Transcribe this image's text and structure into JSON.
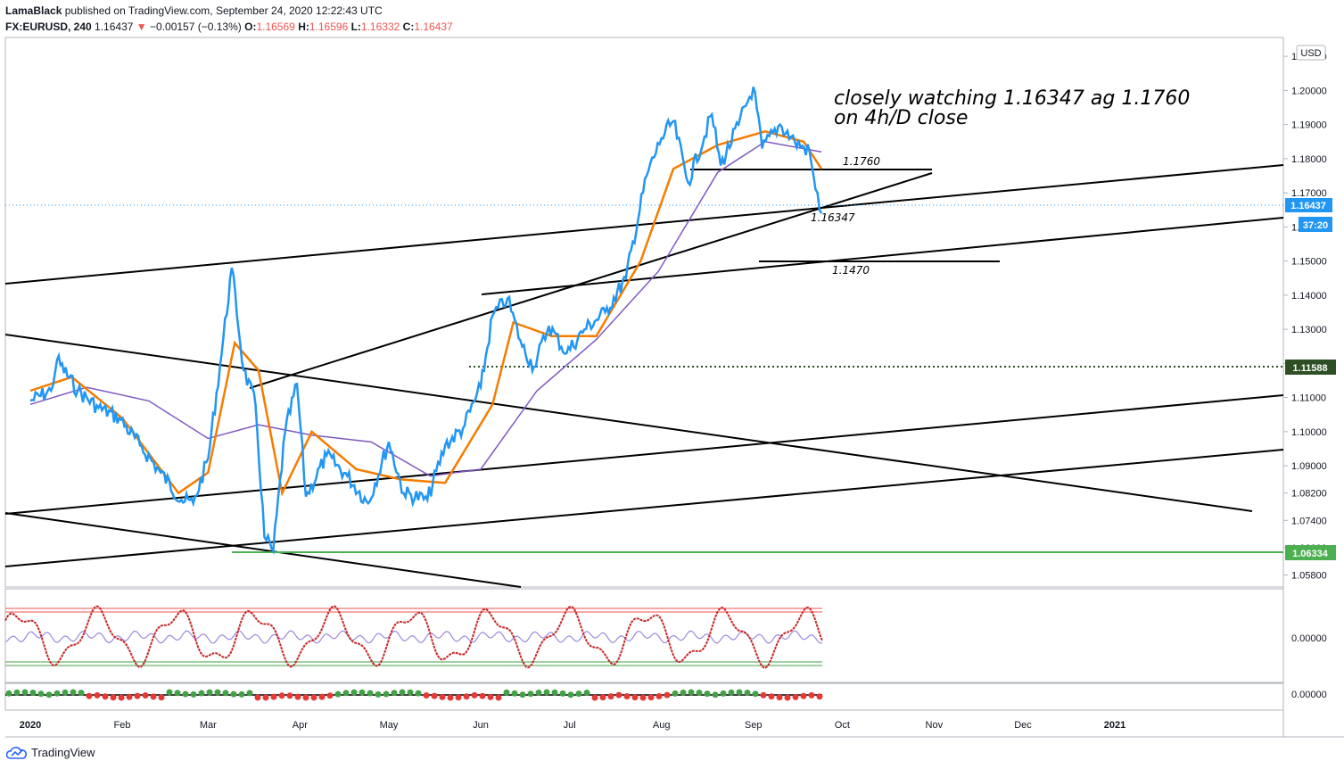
{
  "header": {
    "author": "LamaBlack",
    "published": "published on TradingView.com, September 24, 2020 12:22:43 UTC",
    "symbol": "FX:EURUSD, 240",
    "last": "1.16437",
    "change": "−0.00157 (−0.13%)",
    "o_label": "O:",
    "o_value": "1.16569",
    "h_label": "H:",
    "h_value": "1.16596",
    "l_label": "L:",
    "l_value": "1.16332",
    "c_label": "C:",
    "c_value": "1.16437"
  },
  "footer": {
    "brand": "TradingView"
  },
  "currency_badge": "USD",
  "colors": {
    "price": "#2196f3",
    "ma_fast": "#f57c00",
    "ma_slow": "#7e57c2",
    "support_green": "#4caf50",
    "last_tag": "#2196f3",
    "level_tag_dark": "#2e4f24",
    "osc_red": "#e53935",
    "osc_green": "#43a047"
  },
  "annotations": {
    "note_line1": "closely watching 1.16347 ag 1.1760",
    "note_line2": "on 4h/D close",
    "level_a": "1.1760",
    "level_b": "1.16347",
    "level_c": "1.1470"
  },
  "price_tags": {
    "last": "1.16437",
    "timer": "37:20",
    "dotted_level": "1.11588",
    "green_level": "1.06334"
  },
  "chart_data": [
    {
      "type": "line",
      "title": "",
      "x_ticks": [
        "2020",
        "Feb",
        "Mar",
        "Apr",
        "May",
        "Jun",
        "Jul",
        "Aug",
        "Sep",
        "Oct",
        "Nov",
        "Dec",
        "2021"
      ],
      "y_ticks": [
        "1.05800",
        "1.06600",
        "1.07400",
        "1.08200",
        "1.09000",
        "1.10000",
        "1.11000",
        "1.12000",
        "1.13000",
        "1.14000",
        "1.15000",
        "1.16000",
        "1.17000",
        "1.18000",
        "1.19000",
        "1.20000",
        "1.21000"
      ],
      "ylim": [
        1.055,
        1.215
      ],
      "series": [
        {
          "kind": "price",
          "points": [
            [
              "2020-01-01",
              1.109
            ],
            [
              "2020-01-08",
              1.112
            ],
            [
              "2020-01-10",
              1.121
            ],
            [
              "2020-01-17",
              1.112
            ],
            [
              "2020-01-24",
              1.107
            ],
            [
              "2020-01-31",
              1.104
            ],
            [
              "2020-02-07",
              1.096
            ],
            [
              "2020-02-14",
              1.088
            ],
            [
              "2020-02-21",
              1.08
            ],
            [
              "2020-02-25",
              1.079
            ],
            [
              "2020-03-01",
              1.092
            ],
            [
              "2020-03-05",
              1.119
            ],
            [
              "2020-03-09",
              1.148
            ],
            [
              "2020-03-13",
              1.118
            ],
            [
              "2020-03-17",
              1.108
            ],
            [
              "2020-03-20",
              1.069
            ],
            [
              "2020-03-23",
              1.065
            ],
            [
              "2020-03-27",
              1.1
            ],
            [
              "2020-03-31",
              1.114
            ],
            [
              "2020-04-03",
              1.081
            ],
            [
              "2020-04-10",
              1.093
            ],
            [
              "2020-04-17",
              1.087
            ],
            [
              "2020-04-24",
              1.079
            ],
            [
              "2020-05-01",
              1.097
            ],
            [
              "2020-05-06",
              1.082
            ],
            [
              "2020-05-14",
              1.08
            ],
            [
              "2020-05-20",
              1.096
            ],
            [
              "2020-05-26",
              1.101
            ],
            [
              "2020-06-01",
              1.113
            ],
            [
              "2020-06-05",
              1.134
            ],
            [
              "2020-06-10",
              1.139
            ],
            [
              "2020-06-15",
              1.125
            ],
            [
              "2020-06-19",
              1.119
            ],
            [
              "2020-06-24",
              1.131
            ],
            [
              "2020-06-30",
              1.123
            ],
            [
              "2020-07-06",
              1.13
            ],
            [
              "2020-07-13",
              1.135
            ],
            [
              "2020-07-20",
              1.145
            ],
            [
              "2020-07-27",
              1.175
            ],
            [
              "2020-08-01",
              1.186
            ],
            [
              "2020-08-05",
              1.191
            ],
            [
              "2020-08-10",
              1.173
            ],
            [
              "2020-08-18",
              1.193
            ],
            [
              "2020-08-21",
              1.178
            ],
            [
              "2020-08-27",
              1.19
            ],
            [
              "2020-09-01",
              1.201
            ],
            [
              "2020-09-04",
              1.183
            ],
            [
              "2020-09-10",
              1.19
            ],
            [
              "2020-09-15",
              1.185
            ],
            [
              "2020-09-20",
              1.182
            ],
            [
              "2020-09-22",
              1.171
            ],
            [
              "2020-09-24",
              1.164
            ]
          ]
        },
        {
          "kind": "ma_fast",
          "points": [
            [
              "2020-01-01",
              1.112
            ],
            [
              "2020-01-15",
              1.116
            ],
            [
              "2020-02-01",
              1.104
            ],
            [
              "2020-02-20",
              1.082
            ],
            [
              "2020-03-01",
              1.088
            ],
            [
              "2020-03-10",
              1.126
            ],
            [
              "2020-03-18",
              1.118
            ],
            [
              "2020-03-26",
              1.082
            ],
            [
              "2020-04-05",
              1.1
            ],
            [
              "2020-04-20",
              1.089
            ],
            [
              "2020-05-05",
              1.086
            ],
            [
              "2020-05-20",
              1.085
            ],
            [
              "2020-06-05",
              1.108
            ],
            [
              "2020-06-12",
              1.132
            ],
            [
              "2020-06-25",
              1.128
            ],
            [
              "2020-07-10",
              1.128
            ],
            [
              "2020-07-25",
              1.15
            ],
            [
              "2020-08-05",
              1.177
            ],
            [
              "2020-08-20",
              1.184
            ],
            [
              "2020-09-05",
              1.188
            ],
            [
              "2020-09-18",
              1.185
            ],
            [
              "2020-09-24",
              1.177
            ]
          ]
        },
        {
          "kind": "ma_slow",
          "points": [
            [
              "2020-01-01",
              1.108
            ],
            [
              "2020-01-20",
              1.113
            ],
            [
              "2020-02-10",
              1.109
            ],
            [
              "2020-03-01",
              1.098
            ],
            [
              "2020-03-18",
              1.102
            ],
            [
              "2020-04-05",
              1.099
            ],
            [
              "2020-04-25",
              1.097
            ],
            [
              "2020-05-15",
              1.087
            ],
            [
              "2020-06-01",
              1.089
            ],
            [
              "2020-06-20",
              1.112
            ],
            [
              "2020-07-10",
              1.127
            ],
            [
              "2020-07-31",
              1.147
            ],
            [
              "2020-08-20",
              1.176
            ],
            [
              "2020-09-05",
              1.185
            ],
            [
              "2020-09-24",
              1.182
            ]
          ]
        }
      ]
    },
    {
      "type": "line",
      "title": "",
      "y_ticks": [
        "0.00000"
      ]
    },
    {
      "type": "line",
      "title": "",
      "y_ticks": [
        "0.00000"
      ]
    }
  ]
}
